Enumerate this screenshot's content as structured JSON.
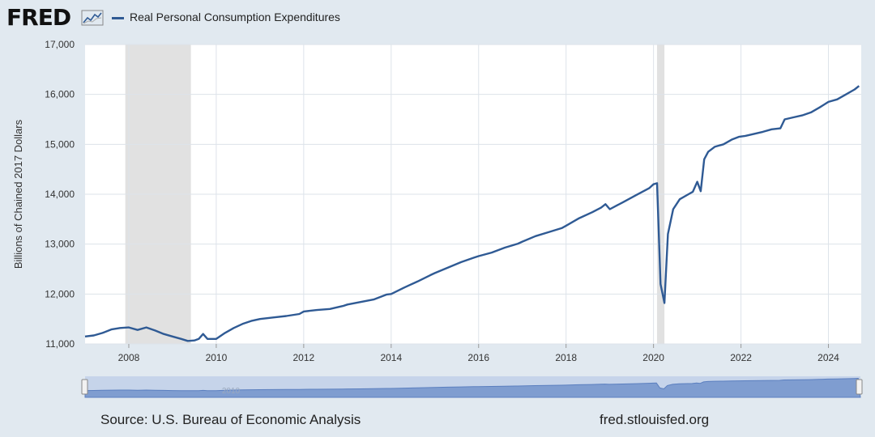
{
  "brand": {
    "logo_text": "FRED"
  },
  "footer": {
    "source": "Source: U.S. Bureau of Economic Analysis",
    "url": "fred.stlouisfed.org"
  },
  "colors": {
    "line": "#2f5a94",
    "background": "#e1e9f0",
    "plot_background": "#ffffff",
    "recession": "#e1e1e1",
    "grid": "#dde3ea",
    "navigator": "#7f9dd0",
    "navigator_mask": "#c6d4ea"
  },
  "chart_data": {
    "type": "line",
    "ylabel": "Billions of Chained 2017 Dollars",
    "xlim": [
      2007.0,
      2024.75
    ],
    "ylim": [
      11000,
      17000
    ],
    "yticks": [
      11000,
      12000,
      13000,
      14000,
      15000,
      16000,
      17000
    ],
    "ytick_labels": [
      "11,000",
      "12,000",
      "13,000",
      "14,000",
      "15,000",
      "16,000",
      "17,000"
    ],
    "xticks": [
      2008,
      2010,
      2012,
      2014,
      2016,
      2018,
      2020,
      2022,
      2024
    ],
    "xtick_labels": [
      "2008",
      "2010",
      "2012",
      "2014",
      "2016",
      "2018",
      "2020",
      "2022",
      "2024"
    ],
    "grid": true,
    "legend": "top-left",
    "recessions": [
      [
        2007.92,
        2009.42
      ],
      [
        2020.08,
        2020.25
      ]
    ],
    "series": [
      {
        "name": "Real Personal Consumption Expenditures",
        "x": [
          2007.0,
          2007.2,
          2007.4,
          2007.6,
          2007.8,
          2008.0,
          2008.2,
          2008.4,
          2008.6,
          2008.8,
          2009.0,
          2009.2,
          2009.35,
          2009.5,
          2009.6,
          2009.7,
          2009.8,
          2009.9,
          2010.0,
          2010.2,
          2010.4,
          2010.6,
          2010.8,
          2011.0,
          2011.3,
          2011.6,
          2011.9,
          2012.0,
          2012.3,
          2012.6,
          2012.9,
          2013.0,
          2013.3,
          2013.6,
          2013.9,
          2014.0,
          2014.3,
          2014.6,
          2014.9,
          2015.0,
          2015.3,
          2015.6,
          2015.9,
          2016.0,
          2016.3,
          2016.6,
          2016.9,
          2017.0,
          2017.3,
          2017.6,
          2017.9,
          2018.0,
          2018.3,
          2018.6,
          2018.8,
          2018.9,
          2019.0,
          2019.3,
          2019.6,
          2019.9,
          2020.0,
          2020.08,
          2020.16,
          2020.25,
          2020.33,
          2020.45,
          2020.6,
          2020.8,
          2020.9,
          2021.0,
          2021.08,
          2021.16,
          2021.25,
          2021.4,
          2021.6,
          2021.8,
          2021.95,
          2022.1,
          2022.3,
          2022.5,
          2022.7,
          2022.9,
          2023.0,
          2023.2,
          2023.4,
          2023.6,
          2023.8,
          2024.0,
          2024.2,
          2024.4,
          2024.6,
          2024.7
        ],
        "values": [
          11150,
          11170,
          11220,
          11290,
          11320,
          11330,
          11280,
          11330,
          11270,
          11200,
          11150,
          11100,
          11060,
          11070,
          11100,
          11200,
          11100,
          11100,
          11100,
          11220,
          11320,
          11400,
          11460,
          11500,
          11530,
          11560,
          11600,
          11650,
          11680,
          11700,
          11760,
          11790,
          11840,
          11890,
          11990,
          12000,
          12130,
          12250,
          12380,
          12420,
          12530,
          12640,
          12730,
          12760,
          12830,
          12930,
          13010,
          13050,
          13160,
          13240,
          13320,
          13370,
          13520,
          13640,
          13730,
          13800,
          13700,
          13840,
          13980,
          14120,
          14200,
          14220,
          12200,
          11820,
          13200,
          13700,
          13900,
          14000,
          14050,
          14250,
          14060,
          14700,
          14850,
          14950,
          15000,
          15100,
          15150,
          15170,
          15210,
          15250,
          15300,
          15320,
          15500,
          15540,
          15580,
          15640,
          15740,
          15850,
          15900,
          16000,
          16100,
          16170
        ]
      }
    ]
  }
}
